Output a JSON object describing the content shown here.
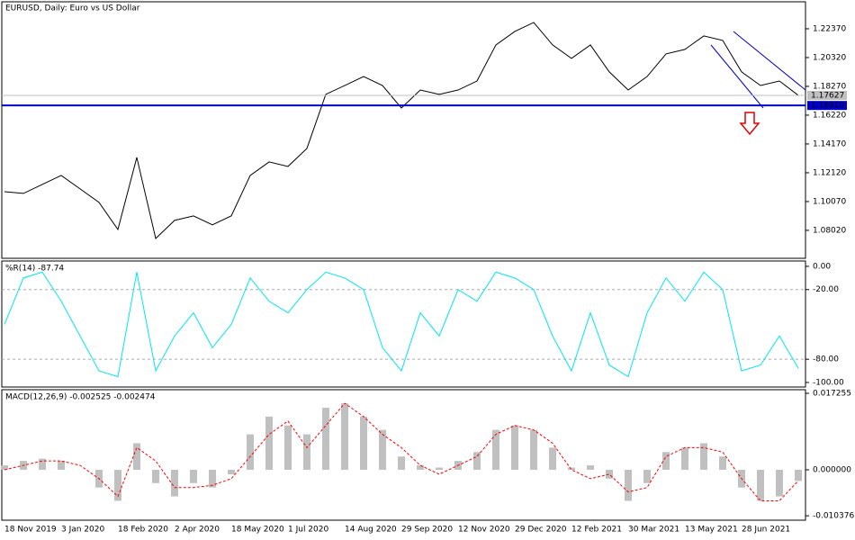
{
  "chart_data": [
    {
      "type": "line",
      "title": "EURUSD, Daily:  Euro vs US Dollar",
      "color": "#000000",
      "categories": [
        "18 Nov 2019",
        null,
        null,
        "3 Jan 2020",
        null,
        null,
        "18 Feb 2020",
        null,
        null,
        "2 Apr 2020",
        null,
        null,
        "18 May 2020",
        null,
        null,
        "1 Jul 2020",
        null,
        null,
        "14 Aug 2020",
        null,
        null,
        "29 Sep 2020",
        null,
        null,
        "12 Nov 2020",
        null,
        null,
        "29 Dec 2020",
        null,
        null,
        "12 Feb 2021",
        null,
        null,
        "30 Mar 2021",
        null,
        null,
        "13 May 2021",
        null,
        null,
        "28 Jun 2021",
        null,
        null,
        null
      ],
      "values": [
        1.1077,
        1.1065,
        1.1129,
        1.1193,
        1.1097,
        1.1001,
        1.0808,
        1.1321,
        1.0744,
        1.0873,
        1.0905,
        1.0841,
        1.0905,
        1.1193,
        1.1289,
        1.1257,
        1.1385,
        1.177,
        1.1833,
        1.1897,
        1.1833,
        1.1673,
        1.1801,
        1.177,
        1.1801,
        1.1865,
        1.2122,
        1.2218,
        1.2282,
        1.2122,
        1.2026,
        1.2122,
        1.193,
        1.1801,
        1.1897,
        1.2058,
        1.209,
        1.2186,
        1.2154,
        1.193,
        1.1833,
        1.1865,
        1.1763
      ],
      "ylim": [
        1.0603,
        1.2429
      ],
      "yticks": [
        {
          "value": 1.0802,
          "label": "1.08020"
        },
        {
          "value": 1.1007,
          "label": "1.10070"
        },
        {
          "value": 1.1212,
          "label": "1.12120"
        },
        {
          "value": 1.1417,
          "label": "1.14170"
        },
        {
          "value": 1.1622,
          "label": "1.16220"
        },
        {
          "value": 1.1827,
          "label": "1.18270"
        },
        {
          "value": 1.2032,
          "label": "1.20320"
        },
        {
          "value": 1.2237,
          "label": "1.22370"
        }
      ],
      "current_price": {
        "value": 1.17627,
        "label": "1.17627"
      },
      "level": {
        "value": 1.1691,
        "label": "1.16910",
        "color": "#0000cc"
      }
    },
    {
      "type": "line",
      "title": "%R(14) -87.74",
      "color": "#00e5ee",
      "values": [
        -50,
        -10,
        -5,
        -30,
        -60,
        -90,
        -95,
        -5,
        -90,
        -60,
        -40,
        -70,
        -50,
        -10,
        -30,
        -40,
        -20,
        -5,
        -10,
        -20,
        -70,
        -90,
        -40,
        -60,
        -20,
        -30,
        -5,
        -10,
        -20,
        -60,
        -90,
        -40,
        -85,
        -95,
        -40,
        -10,
        -30,
        -5,
        -20,
        -90,
        -85,
        -60,
        -87.74
      ],
      "ylim": [
        -103.9,
        4.6
      ],
      "yticks": [
        {
          "value": 0,
          "label": "0.00"
        },
        {
          "value": -20,
          "label": "-20.00"
        },
        {
          "value": -80,
          "label": "-80.00"
        },
        {
          "value": -100,
          "label": "-100.00"
        }
      ]
    },
    {
      "type": "macd",
      "title": "MACD(12,26,9) -0.002525 -0.002474",
      "series": [
        {
          "name": "MACD",
          "color": "#c0c0c0",
          "values": [
            0.001,
            0.002,
            0.0025,
            0.002,
            0,
            -0.004,
            -0.007,
            0.006,
            -0.003,
            -0.006,
            -0.003,
            -0.004,
            -0.001,
            0.008,
            0.012,
            0.01,
            0.008,
            0.014,
            0.015,
            0.012,
            0.009,
            0.003,
            0.001,
            0.0005,
            0.002,
            0.004,
            0.009,
            0.01,
            0.009,
            0.005,
            0.0005,
            0.001,
            -0.002,
            -0.007,
            -0.003,
            0.004,
            0.005,
            0.006,
            0.003,
            -0.004,
            -0.007,
            -0.006,
            -0.002525
          ]
        },
        {
          "name": "Signal",
          "color": "#ff0000",
          "values": [
            0,
            0.001,
            0.002,
            0.002,
            0.001,
            -0.002,
            -0.006,
            0.005,
            0.002,
            -0.004,
            -0.004,
            -0.0035,
            -0.002,
            0.003,
            0.008,
            0.011,
            0.005,
            0.01,
            0.015,
            0.012,
            0.008,
            0.005,
            0.001,
            -0.001,
            0.001,
            0.003,
            0.008,
            0.01,
            0.009,
            0.006,
            0,
            -0.002,
            -0.001,
            -0.005,
            -0.004,
            0.003,
            0.005,
            0.005,
            0.004,
            -0.002,
            -0.007,
            -0.007,
            -0.002474
          ]
        }
      ],
      "ylim": [
        -0.01137,
        0.01807
      ],
      "yticks": [
        {
          "value": 0.017255,
          "label": "0.017255"
        },
        {
          "value": 0,
          "label": "0.000000"
        },
        {
          "value": -0.010376,
          "label": "-0.010376"
        }
      ]
    }
  ]
}
